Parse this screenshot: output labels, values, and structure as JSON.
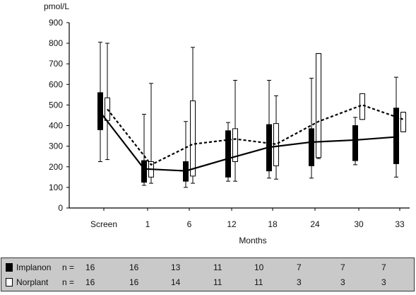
{
  "chart_data": {
    "type": "box",
    "ylabel": "pmol/L",
    "xlabel": "Months",
    "ylim": [
      0,
      900
    ],
    "yticks": [
      "0",
      "100",
      "200",
      "300",
      "400",
      "500",
      "600",
      "700",
      "800",
      "900"
    ],
    "categories": [
      "Screen",
      "1",
      "6",
      "12",
      "18",
      "24",
      "30",
      "33"
    ],
    "series": [
      {
        "name": "Implanon",
        "color": "#000000",
        "line_style": "solid",
        "means": [
          465,
          190,
          180,
          240,
          295,
          320,
          330,
          345
        ],
        "whisker_low": [
          225,
          110,
          100,
          130,
          145,
          145,
          210,
          150
        ],
        "whisker_high": [
          805,
          455,
          420,
          415,
          620,
          630,
          440,
          635
        ],
        "box_low": [
          380,
          125,
          130,
          150,
          180,
          205,
          230,
          215
        ],
        "box_high": [
          560,
          230,
          225,
          375,
          405,
          385,
          400,
          485
        ]
      },
      {
        "name": "Norplant",
        "color": "#ffffff",
        "line_style": "dotted",
        "means": [
          480,
          210,
          310,
          335,
          310,
          420,
          500,
          430
        ],
        "whisker_low": [
          235,
          120,
          120,
          130,
          140,
          240,
          430,
          370
        ],
        "whisker_high": [
          800,
          605,
          780,
          620,
          545,
          750,
          555,
          465
        ],
        "box_low": [
          425,
          150,
          155,
          225,
          205,
          245,
          430,
          370
        ],
        "box_high": [
          535,
          225,
          520,
          385,
          410,
          750,
          555,
          465
        ]
      }
    ]
  },
  "n_table": {
    "rows": [
      {
        "name": "Implanon",
        "swatch": "#000000",
        "prefix": "n  =",
        "counts": [
          "16",
          "16",
          "13",
          "11",
          "10",
          "7",
          "7",
          "7"
        ]
      },
      {
        "name": "Norplant",
        "swatch": "#ffffff",
        "prefix": "n  =",
        "counts": [
          "16",
          "16",
          "14",
          "11",
          "11",
          "3",
          "3",
          "3"
        ]
      }
    ]
  }
}
